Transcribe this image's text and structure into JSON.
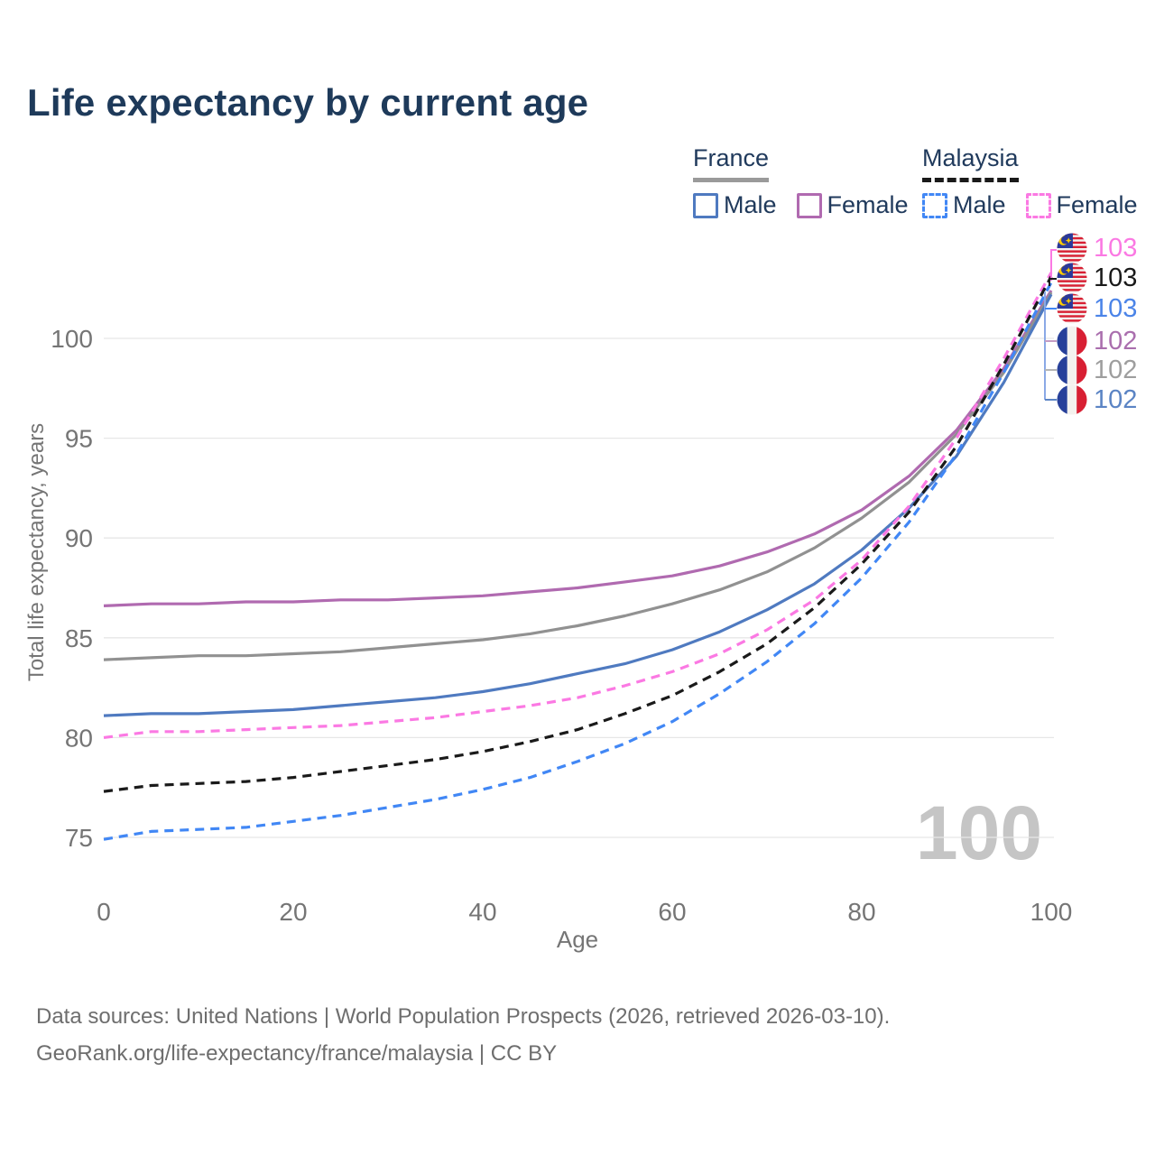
{
  "title": "Life expectancy by current age",
  "legend": {
    "france": {
      "label": "France",
      "male": "Male",
      "female": "Female"
    },
    "malaysia": {
      "label": "Malaysia",
      "male": "Male",
      "female": "Female"
    }
  },
  "chart_data": {
    "type": "line",
    "title": "Life expectancy by current age",
    "xlabel": "Age",
    "ylabel": "Total life expectancy, years",
    "xlim": [
      0,
      100
    ],
    "ylim": [
      73.5,
      104
    ],
    "xticks": [
      0,
      20,
      40,
      60,
      80,
      100
    ],
    "yticks": [
      75,
      80,
      85,
      90,
      95,
      100
    ],
    "grid": "horizontal",
    "legend_position": "top-right",
    "x": [
      0,
      5,
      10,
      15,
      20,
      25,
      30,
      35,
      40,
      45,
      50,
      55,
      60,
      65,
      70,
      75,
      80,
      85,
      90,
      95,
      100
    ],
    "series": [
      {
        "id": "france-female",
        "country": "France",
        "group": "Female",
        "style": "solid",
        "color": "#b06ab0",
        "end_value": 102,
        "values": [
          86.6,
          86.7,
          86.7,
          86.8,
          86.8,
          86.9,
          86.9,
          87.0,
          87.1,
          87.3,
          87.5,
          87.8,
          88.1,
          88.6,
          89.3,
          90.2,
          91.4,
          93.1,
          95.4,
          98.5,
          102.4
        ]
      },
      {
        "id": "france-both",
        "country": "France",
        "group": "Both sexes",
        "style": "solid",
        "color": "#919191",
        "end_value": 102,
        "values": [
          83.9,
          84.0,
          84.1,
          84.1,
          84.2,
          84.3,
          84.5,
          84.7,
          84.9,
          85.2,
          85.6,
          86.1,
          86.7,
          87.4,
          88.3,
          89.5,
          91.0,
          92.8,
          95.2,
          98.3,
          102.3
        ]
      },
      {
        "id": "france-male",
        "country": "France",
        "group": "Male",
        "style": "solid",
        "color": "#4f7ac0",
        "end_value": 102,
        "values": [
          81.1,
          81.2,
          81.2,
          81.3,
          81.4,
          81.6,
          81.8,
          82.0,
          82.3,
          82.7,
          83.2,
          83.7,
          84.4,
          85.3,
          86.4,
          87.7,
          89.4,
          91.5,
          94.1,
          97.8,
          102.2
        ]
      },
      {
        "id": "malaysia-female",
        "country": "Malaysia",
        "group": "Female",
        "style": "dashed",
        "color": "#fb79e3",
        "end_value": 103,
        "values": [
          80.0,
          80.3,
          80.3,
          80.4,
          80.5,
          80.6,
          80.8,
          81.0,
          81.3,
          81.6,
          82.0,
          82.6,
          83.3,
          84.2,
          85.4,
          86.9,
          88.9,
          91.6,
          95.0,
          99.0,
          103.3
        ]
      },
      {
        "id": "malaysia-both",
        "country": "Malaysia",
        "group": "Both sexes",
        "style": "dashed",
        "color": "#1a1a1a",
        "end_value": 103,
        "values": [
          77.3,
          77.6,
          77.7,
          77.8,
          78.0,
          78.3,
          78.6,
          78.9,
          79.3,
          79.8,
          80.4,
          81.2,
          82.1,
          83.3,
          84.7,
          86.5,
          88.7,
          91.3,
          94.6,
          98.7,
          103.1
        ]
      },
      {
        "id": "malaysia-male",
        "country": "Malaysia",
        "group": "Male",
        "style": "dashed",
        "color": "#4187f5",
        "end_value": 103,
        "values": [
          74.9,
          75.3,
          75.4,
          75.5,
          75.8,
          76.1,
          76.5,
          76.9,
          77.4,
          78.0,
          78.8,
          79.7,
          80.8,
          82.2,
          83.8,
          85.7,
          88.0,
          90.8,
          94.2,
          98.3,
          102.8
        ]
      }
    ]
  },
  "end_labels": [
    {
      "flag": "malaysia",
      "value": "103",
      "color": "#fb79e3"
    },
    {
      "flag": "malaysia",
      "value": "103",
      "color": "#1a1a1a"
    },
    {
      "flag": "malaysia",
      "value": "103",
      "color": "#4b84e8"
    },
    {
      "flag": "france",
      "value": "102",
      "color": "#aa6fae"
    },
    {
      "flag": "france",
      "value": "102",
      "color": "#9e9e9e"
    },
    {
      "flag": "france",
      "value": "102",
      "color": "#5b84c4"
    }
  ],
  "watermark": "100",
  "footer": {
    "line1": "Data sources: United Nations | World Population Prospects (2026, retrieved 2026-03-10).",
    "line2": "GeoRank.org/life-expectancy/france/malaysia | CC BY"
  }
}
